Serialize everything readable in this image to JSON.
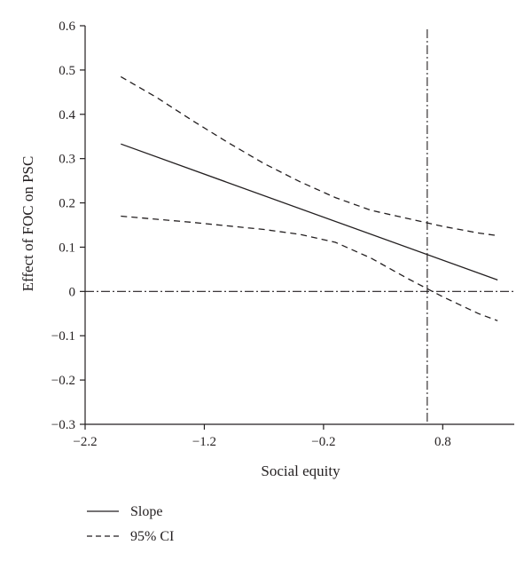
{
  "chart_data": {
    "type": "line",
    "xlabel": "Social equity",
    "ylabel": "Effect of FOC on PSC",
    "xlim": [
      -2.2,
      1.4
    ],
    "ylim": [
      -0.3,
      0.6
    ],
    "xticks": [
      -2.2,
      -1.2,
      -0.2,
      0.8
    ],
    "xtick_labels": [
      "−2.2",
      "−1.2",
      "−0.2",
      "0.8"
    ],
    "yticks": [
      0.6,
      0.5,
      0.4,
      0.3,
      0.2,
      0.1,
      0,
      -0.1,
      -0.2,
      -0.3
    ],
    "ytick_labels": [
      "0.6",
      "0.5",
      "0.4",
      "0.3",
      "0.2",
      "0.1",
      "0",
      "−0.1",
      "−0.2",
      "−0.3"
    ],
    "reference_lines": {
      "horizontal_y": 0,
      "vertical_x": 0.67
    },
    "series": [
      {
        "name": "Slope",
        "style": "solid",
        "x": [
          -1.9,
          1.26
        ],
        "y": [
          0.333,
          0.026
        ]
      },
      {
        "name": "95% CI",
        "style": "dashed",
        "x": [
          -1.9,
          -1.6,
          -1.3,
          -1.0,
          -0.7,
          -0.4,
          -0.1,
          0.2,
          0.5,
          0.8,
          1.1,
          1.26
        ],
        "y": [
          0.485,
          0.438,
          0.386,
          0.336,
          0.289,
          0.248,
          0.212,
          0.183,
          0.165,
          0.147,
          0.132,
          0.126
        ]
      },
      {
        "name": "95% CI",
        "style": "dashed",
        "x": [
          -1.9,
          -1.6,
          -1.3,
          -1.0,
          -0.7,
          -0.4,
          -0.1,
          0.2,
          0.5,
          0.8,
          1.1,
          1.26
        ],
        "y": [
          0.17,
          0.163,
          0.156,
          0.148,
          0.14,
          0.129,
          0.111,
          0.075,
          0.03,
          -0.012,
          -0.05,
          -0.066
        ]
      }
    ],
    "legend": {
      "placement": "bottom-left",
      "entries": [
        {
          "label": "Slope",
          "style": "solid"
        },
        {
          "label": "95% CI",
          "style": "dashed"
        }
      ]
    },
    "grid": false,
    "colors": {
      "line": "#231f20"
    }
  }
}
